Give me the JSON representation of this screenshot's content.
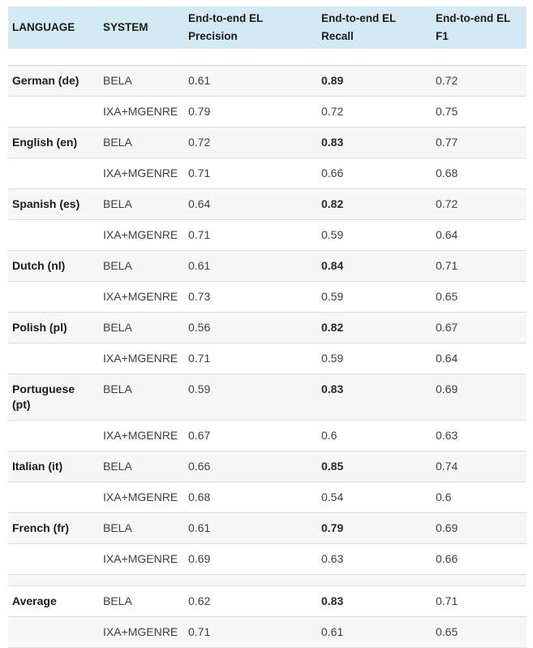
{
  "colors": {
    "header_background": "#d3e9f3",
    "shaded_row_background": "#f7f7f7",
    "row_border": "#dcdcdc",
    "header_text": "#1b1b1b",
    "value_text": "#3e3e3e"
  },
  "table": {
    "columns": [
      {
        "key": "language",
        "label": "LANGUAGE"
      },
      {
        "key": "system",
        "label": "SYSTEM"
      },
      {
        "key": "precision",
        "label": "End-to-end EL Precision"
      },
      {
        "key": "recall",
        "label": "End-to-end EL Recall"
      },
      {
        "key": "f1",
        "label": "End-to-end EL F1"
      }
    ],
    "rows": [
      {
        "type": "separator",
        "shade": "white"
      },
      {
        "type": "data",
        "language": "German (de)",
        "system": "BELA",
        "precision": "0.61",
        "recall": "0.89",
        "recall_bold": true,
        "f1": "0.72",
        "shade": "gray"
      },
      {
        "type": "data",
        "language": "",
        "system": "IXA+MGENRE",
        "precision": "0.79",
        "recall": "0.72",
        "recall_bold": false,
        "f1": "0.75",
        "shade": "white"
      },
      {
        "type": "data",
        "language": "English (en)",
        "system": "BELA",
        "precision": "0.72",
        "recall": "0.83",
        "recall_bold": true,
        "f1": "0.77",
        "shade": "gray"
      },
      {
        "type": "data",
        "language": "",
        "system": "IXA+MGENRE",
        "precision": "0.71",
        "recall": "0.66",
        "recall_bold": false,
        "f1": "0.68",
        "shade": "white"
      },
      {
        "type": "data",
        "language": "Spanish (es)",
        "system": "BELA",
        "precision": "0.64",
        "recall": "0.82",
        "recall_bold": true,
        "f1": "0.72",
        "shade": "gray"
      },
      {
        "type": "data",
        "language": "",
        "system": "IXA+MGENRE",
        "precision": "0.71",
        "recall": "0.59",
        "recall_bold": false,
        "f1": "0.64",
        "shade": "white"
      },
      {
        "type": "data",
        "language": "Dutch (nl)",
        "system": "BELA",
        "precision": "0.61",
        "recall": "0.84",
        "recall_bold": true,
        "f1": "0.71",
        "shade": "gray"
      },
      {
        "type": "data",
        "language": "",
        "system": "IXA+MGENRE",
        "precision": "0.73",
        "recall": "0.59",
        "recall_bold": false,
        "f1": "0.65",
        "shade": "white"
      },
      {
        "type": "data",
        "language": "Polish (pl)",
        "system": "BELA",
        "precision": "0.56",
        "recall": "0.82",
        "recall_bold": true,
        "f1": "0.67",
        "shade": "gray"
      },
      {
        "type": "data",
        "language": "",
        "system": "IXA+MGENRE",
        "precision": "0.71",
        "recall": "0.59",
        "recall_bold": false,
        "f1": "0.64",
        "shade": "white"
      },
      {
        "type": "data",
        "language": "Portuguese (pt)",
        "system": "BELA",
        "precision": "0.59",
        "recall": "0.83",
        "recall_bold": true,
        "f1": "0.69",
        "shade": "gray"
      },
      {
        "type": "data",
        "language": "",
        "system": "IXA+MGENRE",
        "precision": "0.67",
        "recall": "0.6",
        "recall_bold": false,
        "f1": "0.63",
        "shade": "white"
      },
      {
        "type": "data",
        "language": "Italian (it)",
        "system": "BELA",
        "precision": "0.66",
        "recall": "0.85",
        "recall_bold": true,
        "f1": "0.74",
        "shade": "gray"
      },
      {
        "type": "data",
        "language": "",
        "system": "IXA+MGENRE",
        "precision": "0.68",
        "recall": "0.54",
        "recall_bold": false,
        "f1": "0.6",
        "shade": "white"
      },
      {
        "type": "data",
        "language": "French (fr)",
        "system": "BELA",
        "precision": "0.61",
        "recall": "0.79",
        "recall_bold": true,
        "f1": "0.69",
        "shade": "gray"
      },
      {
        "type": "data",
        "language": "",
        "system": "IXA+MGENRE",
        "precision": "0.69",
        "recall": "0.63",
        "recall_bold": false,
        "f1": "0.66",
        "shade": "white"
      },
      {
        "type": "separator",
        "shade": "gray"
      },
      {
        "type": "data",
        "language": "Average",
        "system": "BELA",
        "precision": "0.62",
        "recall": "0.83",
        "recall_bold": true,
        "f1": "0.71",
        "shade": "white"
      },
      {
        "type": "data",
        "language": "",
        "system": "IXA+MGENRE",
        "precision": "0.71",
        "recall": "0.61",
        "recall_bold": false,
        "f1": "0.65",
        "shade": "gray"
      }
    ]
  }
}
